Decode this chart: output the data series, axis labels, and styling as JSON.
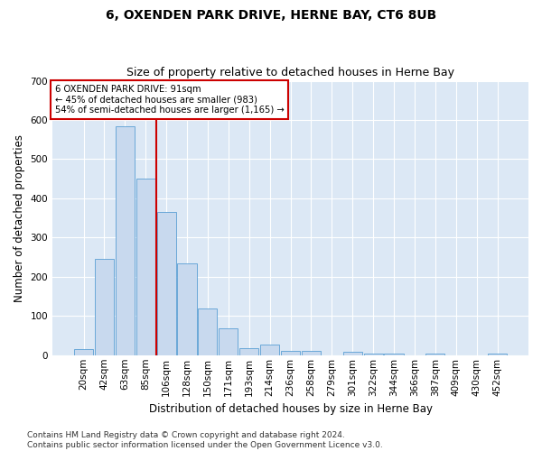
{
  "title": "6, OXENDEN PARK DRIVE, HERNE BAY, CT6 8UB",
  "subtitle": "Size of property relative to detached houses in Herne Bay",
  "xlabel": "Distribution of detached houses by size in Herne Bay",
  "ylabel": "Number of detached properties",
  "bar_labels": [
    "20sqm",
    "42sqm",
    "63sqm",
    "85sqm",
    "106sqm",
    "128sqm",
    "150sqm",
    "171sqm",
    "193sqm",
    "214sqm",
    "236sqm",
    "258sqm",
    "279sqm",
    "301sqm",
    "322sqm",
    "344sqm",
    "366sqm",
    "387sqm",
    "409sqm",
    "430sqm",
    "452sqm"
  ],
  "bar_values": [
    15,
    245,
    585,
    450,
    365,
    235,
    120,
    68,
    17,
    28,
    12,
    10,
    0,
    8,
    5,
    5,
    0,
    3,
    0,
    0,
    3
  ],
  "bar_color": "#c8d9ee",
  "bar_edge_color": "#5a9fd4",
  "vline_color": "#cc0000",
  "annotation_text": "6 OXENDEN PARK DRIVE: 91sqm\n← 45% of detached houses are smaller (983)\n54% of semi-detached houses are larger (1,165) →",
  "annotation_box_color": "#ffffff",
  "annotation_box_edge_color": "#cc0000",
  "ylim": [
    0,
    700
  ],
  "yticks": [
    0,
    100,
    200,
    300,
    400,
    500,
    600,
    700
  ],
  "plot_bg_color": "#dce8f5",
  "grid_color": "#ffffff",
  "footer": "Contains HM Land Registry data © Crown copyright and database right 2024.\nContains public sector information licensed under the Open Government Licence v3.0.",
  "title_fontsize": 10,
  "subtitle_fontsize": 9,
  "xlabel_fontsize": 8.5,
  "ylabel_fontsize": 8.5,
  "footer_fontsize": 6.5,
  "tick_fontsize": 7.5
}
